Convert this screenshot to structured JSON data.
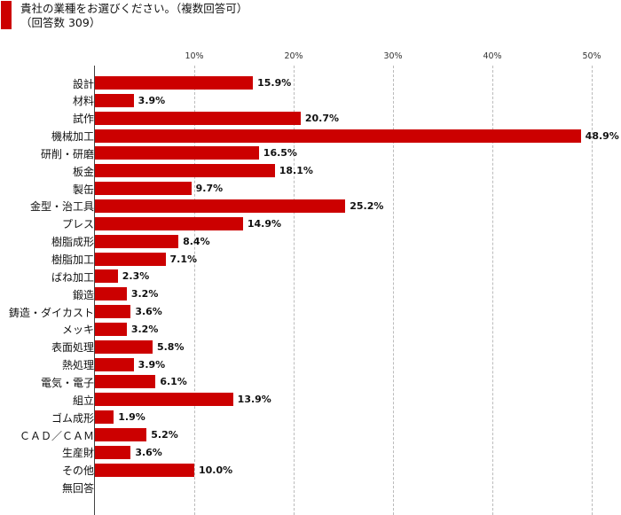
{
  "title": {
    "line1": "貴社の業種をお選びください。（複数回答可）",
    "line2": "（回答数 309）",
    "accent_color": "#cc0000"
  },
  "chart_data": {
    "type": "bar",
    "orientation": "horizontal",
    "title": "貴社の業種をお選びください。（複数回答可）（回答数 309）",
    "xlabel": "",
    "ylabel": "",
    "xlim": [
      0,
      52
    ],
    "grid": true,
    "legend": null,
    "bar_color": "#cc0000",
    "x_ticks": [
      "10%",
      "20%",
      "30%",
      "40%",
      "50%"
    ],
    "x_tick_values": [
      10,
      20,
      30,
      40,
      50
    ],
    "categories": [
      "設計",
      "材料",
      "試作",
      "機械加工",
      "研削・研磨",
      "板金",
      "製缶",
      "金型・治工具",
      "プレス",
      "樹脂成形",
      "樹脂加工",
      "ばね加工",
      "鍛造",
      "鋳造・ダイカスト",
      "メッキ",
      "表面処理",
      "熱処理",
      "電気・電子",
      "組立",
      "ゴム成形",
      "ＣＡＤ／ＣＡＭ",
      "生産財",
      "その他",
      "無回答"
    ],
    "values": [
      15.9,
      3.9,
      20.7,
      48.9,
      16.5,
      18.1,
      9.7,
      25.2,
      14.9,
      8.4,
      7.1,
      2.3,
      3.2,
      3.6,
      3.2,
      5.8,
      3.9,
      6.1,
      13.9,
      1.9,
      5.2,
      3.6,
      10.0,
      null
    ],
    "value_labels": [
      "15.9%",
      "3.9%",
      "20.7%",
      "48.9%",
      "16.5%",
      "18.1%",
      "9.7%",
      "25.2%",
      "14.9%",
      "8.4%",
      "7.1%",
      "2.3%",
      "3.2%",
      "3.6%",
      "3.2%",
      "5.8%",
      "3.9%",
      "6.1%",
      "13.9%",
      "1.9%",
      "5.2%",
      "3.6%",
      "10.0%",
      ""
    ]
  }
}
